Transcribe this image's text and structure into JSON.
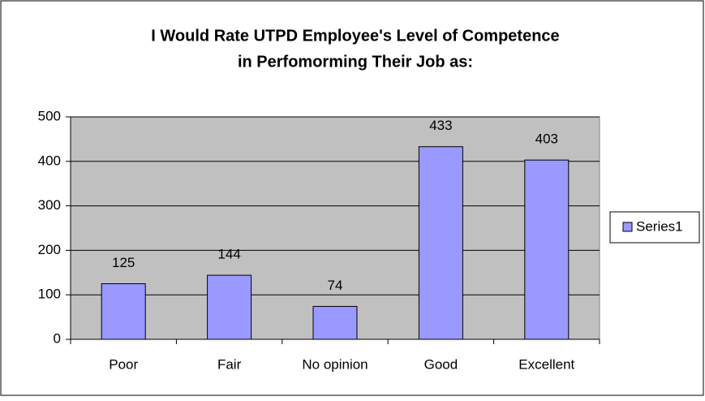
{
  "chart_data": {
    "type": "bar",
    "title": [
      "I Would Rate UTPD Employee's Level of Competence",
      "in Perfomorming Their Job as:"
    ],
    "categories": [
      "Poor",
      "Fair",
      "No opinion",
      "Good",
      "Excellent"
    ],
    "series": [
      {
        "name": "Series1",
        "color": "#9999ff",
        "values": [
          125,
          144,
          74,
          433,
          403
        ]
      }
    ],
    "ylim": [
      0,
      500
    ],
    "yticks": [
      0,
      100,
      200,
      300,
      400,
      500
    ],
    "grid": true,
    "legend": "right",
    "plot_background": "#c0c0c0"
  }
}
